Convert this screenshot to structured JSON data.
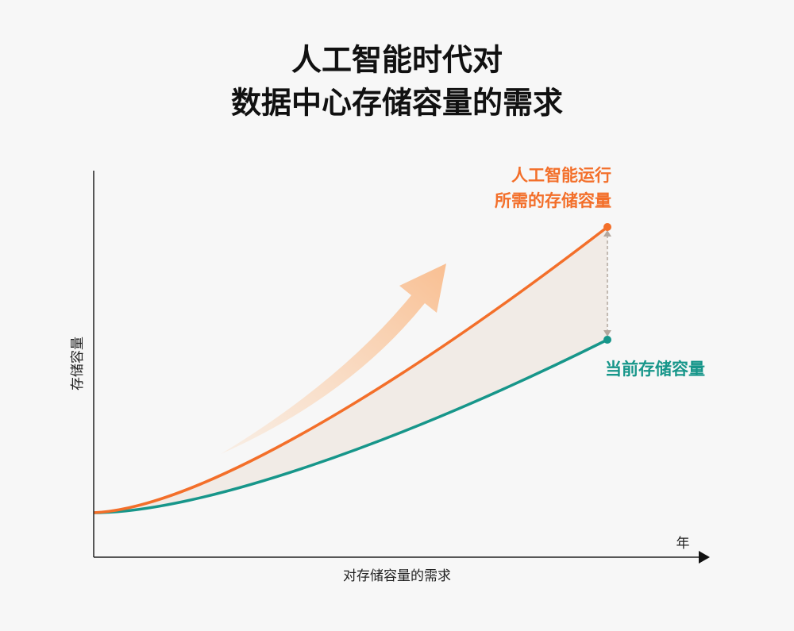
{
  "header": {
    "title": [
      "人工智能时代对",
      "数据中心存储容量的需求"
    ]
  },
  "axes": {
    "y_label": "存储容量",
    "x_label": "年",
    "caption": "对存储容量的需求"
  },
  "curves": {
    "ai_label": [
      "人工智能运行",
      "所需的存储容量"
    ],
    "current_label": "当前存储容量"
  }
}
